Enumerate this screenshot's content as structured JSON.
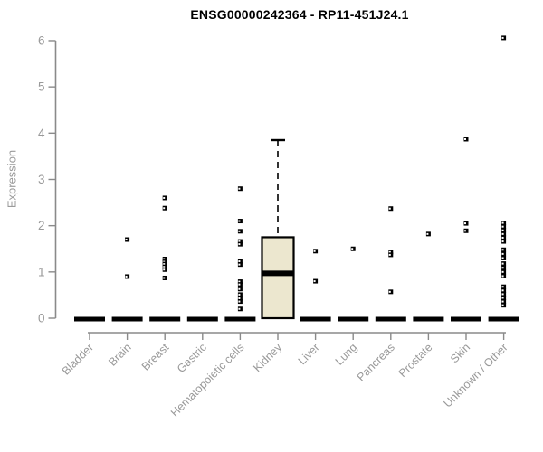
{
  "page": {
    "background": "#ffffff"
  },
  "chart_data": {
    "type": "boxplot",
    "title": "ENSG00000242364 - RP11-451J24.1",
    "ylabel": "Expression",
    "xlabel": "",
    "ylim": [
      0,
      6
    ],
    "yticks": [
      0,
      1,
      2,
      3,
      4,
      5,
      6
    ],
    "grid": false,
    "legend": "none",
    "colors": {
      "axis": "#8a8a8a",
      "tick_label": "#999999",
      "category_label": "#999999",
      "title": "#000000",
      "box_fill": "#ece7cf",
      "box_stroke": "#000000",
      "median": "#000000",
      "point": "#000000",
      "point_notch": "#ffffff",
      "background": "#ffffff"
    },
    "categories": [
      "Bladder",
      "Brain",
      "Breast",
      "Gastric",
      "Hematopoietic cells",
      "Kidney",
      "Liver",
      "Lung",
      "Pancreas",
      "Prostate",
      "Skin",
      "Unknown / Other"
    ],
    "boxes": [
      {
        "low": 0,
        "q1": 0,
        "median": 0,
        "q3": 0,
        "high": 0
      },
      {
        "low": 0,
        "q1": 0,
        "median": 0,
        "q3": 0,
        "high": 0
      },
      {
        "low": 0,
        "q1": 0,
        "median": 0,
        "q3": 0,
        "high": 0
      },
      {
        "low": 0,
        "q1": 0,
        "median": 0,
        "q3": 0,
        "high": 0
      },
      {
        "low": 0,
        "q1": 0,
        "median": 0,
        "q3": 0,
        "high": 0
      },
      {
        "low": 0,
        "q1": 0,
        "median": 0.97,
        "q3": 1.75,
        "high": 3.85
      },
      {
        "low": 0,
        "q1": 0,
        "median": 0,
        "q3": 0,
        "high": 0
      },
      {
        "low": 0,
        "q1": 0,
        "median": 0,
        "q3": 0,
        "high": 0
      },
      {
        "low": 0,
        "q1": 0,
        "median": 0,
        "q3": 0,
        "high": 0
      },
      {
        "low": 0,
        "q1": 0,
        "median": 0,
        "q3": 0,
        "high": 0
      },
      {
        "low": 0,
        "q1": 0,
        "median": 0,
        "q3": 0,
        "high": 0
      },
      {
        "low": 0,
        "q1": 0,
        "median": 0,
        "q3": 0,
        "high": 0
      }
    ],
    "points": [
      [],
      [
        1.7,
        0.9
      ],
      [
        2.6,
        2.38,
        1.28,
        1.22,
        1.17,
        1.11,
        1.05,
        0.87
      ],
      [],
      [
        2.8,
        2.1,
        1.88,
        1.66,
        1.6,
        1.23,
        1.16,
        0.79,
        0.73,
        0.63,
        0.51,
        0.43,
        0.36,
        0.2
      ],
      [],
      [
        1.45,
        0.8
      ],
      [
        1.5
      ],
      [
        2.37,
        1.43,
        1.37,
        0.57
      ],
      [
        1.82
      ],
      [
        3.87,
        2.05,
        1.89
      ],
      [
        6.06,
        2.06,
        1.98,
        1.9,
        1.82,
        1.74,
        1.66,
        1.48,
        1.39,
        1.3,
        1.18,
        1.09,
        1.0,
        0.91,
        0.68,
        0.6,
        0.52,
        0.44,
        0.36,
        0.28
      ]
    ]
  }
}
